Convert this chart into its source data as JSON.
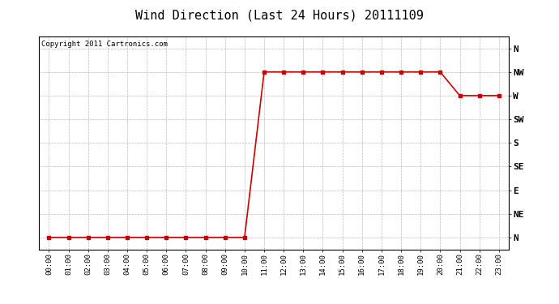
{
  "title": "Wind Direction (Last 24 Hours) 20111109",
  "copyright": "Copyright 2011 Cartronics.com",
  "x_labels": [
    "00:00",
    "01:00",
    "02:00",
    "03:00",
    "04:00",
    "05:00",
    "06:00",
    "07:00",
    "08:00",
    "09:00",
    "10:00",
    "11:00",
    "12:00",
    "13:00",
    "14:00",
    "15:00",
    "16:00",
    "17:00",
    "18:00",
    "19:00",
    "20:00",
    "21:00",
    "22:00",
    "23:00"
  ],
  "y_labels": [
    "N",
    "NE",
    "E",
    "SE",
    "S",
    "SW",
    "W",
    "NW",
    "N"
  ],
  "y_values": [
    0,
    1,
    2,
    3,
    4,
    5,
    6,
    7,
    8
  ],
  "wind_data": [
    0,
    0,
    0,
    0,
    0,
    0,
    0,
    0,
    0,
    0,
    0,
    7,
    7,
    7,
    7,
    7,
    7,
    7,
    7,
    7,
    7,
    6,
    6,
    6
  ],
  "line_color": "#cc0000",
  "marker": "s",
  "marker_size": 2.5,
  "line_width": 1.2,
  "grid_color": "#bbbbbb",
  "grid_style": "--",
  "background_color": "#ffffff",
  "title_fontsize": 11,
  "copyright_fontsize": 6.5,
  "tick_fontsize": 6.5,
  "ytick_fontsize": 8
}
